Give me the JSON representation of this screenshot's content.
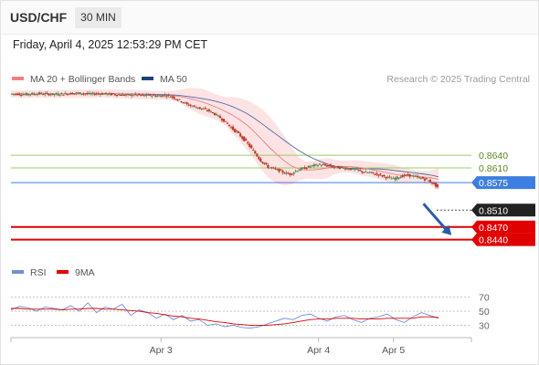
{
  "header": {
    "symbol": "USD/CHF",
    "interval": "30 MIN",
    "datetime": "Friday, April 4, 2025 12:53:29 PM CET"
  },
  "colors": {
    "bollinger_fill": "#fde3e3",
    "ma20": "#f08080",
    "ma50": "#4a6aa8",
    "candle_up": "#5a8a5a",
    "candle_down": "#c0392b",
    "resistance": "#9ccc65",
    "pivot": "#3d7fe0",
    "support": "#e00000",
    "price_tag": "#222222",
    "rsi": "#6f8fd8",
    "rsi_ma": "#e00000",
    "arrow": "#2a5ca8"
  },
  "chart_data": [
    {
      "type": "candlestick",
      "legend_placement": "top-left",
      "legend": [
        {
          "name": "MA 20 + Bollinger Bands",
          "color": "#f08080"
        },
        {
          "name": "MA 50",
          "color": "#1f3f7a"
        }
      ],
      "credit": "Research © 2025 Trading Central",
      "ylim": [
        0.84,
        0.88
      ],
      "x_ticks": [
        {
          "label": "Apr 3",
          "t": 20
        },
        {
          "label": "Apr 4",
          "t": 41
        },
        {
          "label": "Apr 5",
          "t": 51
        }
      ],
      "xlim": [
        0,
        57
      ],
      "close_series": [
        0.8785,
        0.8785,
        0.8784,
        0.8785,
        0.8786,
        0.8785,
        0.8784,
        0.8785,
        0.8786,
        0.8787,
        0.8786,
        0.8785,
        0.8786,
        0.8785,
        0.8784,
        0.8783,
        0.8782,
        0.8783,
        0.8781,
        0.8782,
        0.878,
        0.8782,
        0.8778,
        0.877,
        0.876,
        0.8755,
        0.875,
        0.8745,
        0.8735,
        0.8722,
        0.8705,
        0.869,
        0.8672,
        0.865,
        0.8627,
        0.8612,
        0.8607,
        0.86,
        0.8595,
        0.8605,
        0.861,
        0.8615,
        0.8618,
        0.8615,
        0.8612,
        0.861,
        0.8608,
        0.8605,
        0.86,
        0.8598,
        0.8594,
        0.8588,
        0.8584,
        0.859,
        0.8593,
        0.8589,
        0.8585,
        0.8578,
        0.8565
      ],
      "levels": [
        {
          "value": 0.864,
          "label": "0.8640",
          "kind": "resistance"
        },
        {
          "value": 0.861,
          "label": "0.8610",
          "kind": "resistance"
        },
        {
          "value": 0.8575,
          "label": "0.8575",
          "kind": "pivot"
        },
        {
          "value": 0.851,
          "label": "0.8510",
          "kind": "last"
        },
        {
          "value": 0.847,
          "label": "0.8470",
          "kind": "support"
        },
        {
          "value": 0.844,
          "label": "0.8440",
          "kind": "support"
        }
      ],
      "projection": {
        "from": [
          55,
          0.8525
        ],
        "to": [
          58.5,
          0.8455
        ]
      }
    },
    {
      "type": "line",
      "legend": [
        {
          "name": "RSI",
          "color": "#6f8fd8"
        },
        {
          "name": "9MA",
          "color": "#e00000"
        }
      ],
      "ylim": [
        15,
        80
      ],
      "y_ticks": [
        70,
        50,
        30
      ],
      "series": [
        {
          "name": "RSI",
          "values": [
            52,
            57,
            55,
            50,
            56,
            54,
            52,
            58,
            50,
            62,
            48,
            56,
            53,
            60,
            44,
            52,
            48,
            40,
            46,
            38,
            44,
            36,
            38,
            30,
            32,
            28,
            30,
            27,
            26,
            28,
            32,
            36,
            40,
            38,
            44,
            46,
            40,
            36,
            42,
            44,
            38,
            34,
            40,
            42,
            46,
            38,
            34,
            42,
            48,
            44,
            40
          ]
        },
        {
          "name": "9MA",
          "values": [
            54,
            54,
            53,
            53,
            53,
            53,
            52,
            53,
            53,
            54,
            54,
            53,
            53,
            52,
            51,
            50,
            48,
            47,
            45,
            43,
            42,
            40,
            39,
            37,
            35,
            34,
            32,
            31,
            30,
            30,
            30,
            31,
            32,
            34,
            36,
            38,
            39,
            39,
            40,
            40,
            40,
            39,
            39,
            39,
            40,
            40,
            40,
            40,
            42,
            42,
            41
          ]
        }
      ]
    }
  ]
}
